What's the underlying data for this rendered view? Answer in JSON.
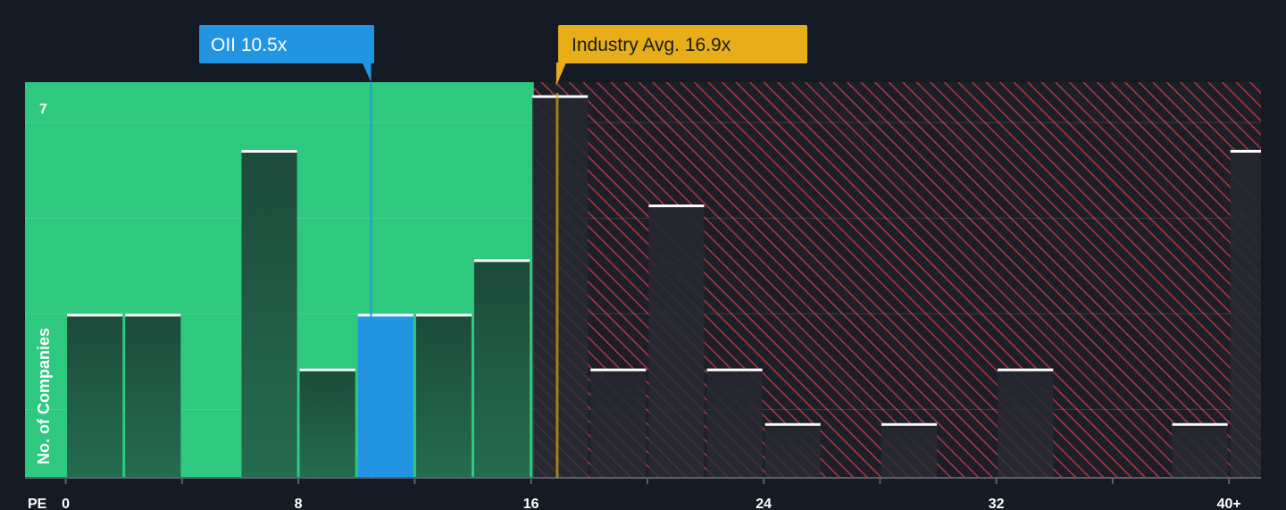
{
  "chart_data": {
    "type": "bar",
    "title": "",
    "xlabel": "PE",
    "ylabel": "No. of Companies",
    "x_ticks": [
      "0",
      "8",
      "16",
      "24",
      "32",
      "40+"
    ],
    "x_tick_values": [
      0,
      8,
      16,
      24,
      32,
      40
    ],
    "xlim": [
      -1.4,
      41.1
    ],
    "ylim": [
      0,
      7.24
    ],
    "y_max_label": "7",
    "bin_width": 2,
    "bins": [
      {
        "start": 0,
        "value": 3
      },
      {
        "start": 2,
        "value": 3
      },
      {
        "start": 4,
        "value": 0
      },
      {
        "start": 6,
        "value": 6
      },
      {
        "start": 8,
        "value": 2
      },
      {
        "start": 10,
        "value": 3,
        "highlight": true
      },
      {
        "start": 12,
        "value": 3
      },
      {
        "start": 14,
        "value": 4
      },
      {
        "start": 16,
        "value": 7
      },
      {
        "start": 18,
        "value": 2
      },
      {
        "start": 20,
        "value": 5
      },
      {
        "start": 22,
        "value": 2
      },
      {
        "start": 24,
        "value": 1
      },
      {
        "start": 26,
        "value": 0
      },
      {
        "start": 28,
        "value": 1
      },
      {
        "start": 30,
        "value": 0
      },
      {
        "start": 32,
        "value": 2
      },
      {
        "start": 34,
        "value": 0
      },
      {
        "start": 36,
        "value": 0
      },
      {
        "start": 38,
        "value": 1
      },
      {
        "start": 40,
        "value": 6
      }
    ],
    "company": {
      "label": "OII 10.5x",
      "value": 10.5
    },
    "industry_avg": {
      "label": "Industry Avg. 16.9x",
      "value": 16.9
    },
    "colors": {
      "background": "#151b24",
      "fair_zone": "#2ec97e",
      "bar_in_fair_zone": "#1d4a3a",
      "bar_in_over_zone": "#252830",
      "highlight_bar": "#2394e1",
      "hatch": "#c3394a",
      "bar_top": "#ffffff",
      "company_marker": "#2394e1",
      "industry_marker": "#e8ae1a",
      "industry_text": "#1a1a1a",
      "company_text": "#ffffff"
    }
  }
}
